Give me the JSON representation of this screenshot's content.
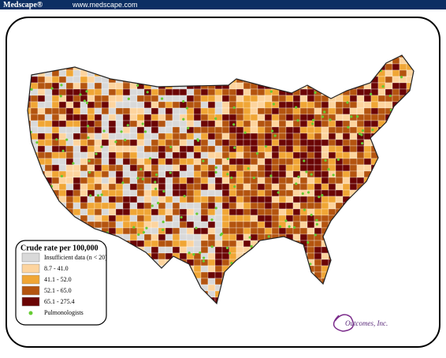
{
  "header": {
    "brand": "Medscape®",
    "url": "www.medscape.com"
  },
  "legend": {
    "title": "Crude rate per 100,000",
    "items": [
      {
        "label": "Insufficient data (n < 20)",
        "color": "#d9d9d9"
      },
      {
        "label": "8.7 - 41.0",
        "color": "#fdd49e"
      },
      {
        "label": "41.1 - 52.0",
        "color": "#f0a635"
      },
      {
        "label": "52.1 - 65.0",
        "color": "#b4540f"
      },
      {
        "label": "65.1 - 275.4",
        "color": "#6b0505"
      }
    ],
    "points": {
      "label": "Pulmonologists",
      "color": "#66cc33"
    }
  },
  "logo": "Outcomes, Inc."
}
